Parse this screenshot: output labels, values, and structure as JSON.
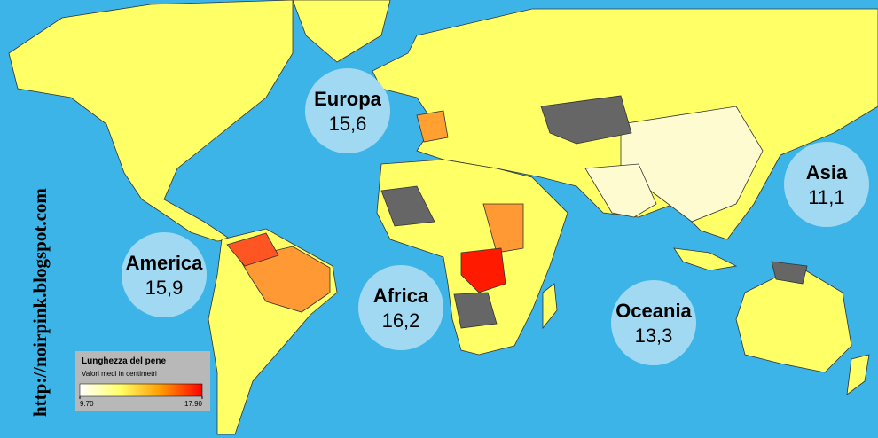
{
  "regions": [
    {
      "name": "Europa",
      "value": {
        "value": 15.6,
        "label": "15,6"
      }
    },
    {
      "name": "Asia",
      "value": {
        "value": 11.1,
        "label": "11,1"
      }
    },
    {
      "name": "America",
      "value": {
        "value": 15.9,
        "label": "15,9"
      }
    },
    {
      "name": "Africa",
      "value": {
        "value": 16.2,
        "label": "16,2"
      }
    },
    {
      "name": "Oceania",
      "value": {
        "value": 13.3,
        "label": "13,3"
      }
    }
  ],
  "legend": {
    "title": "Lunghezza  del pene",
    "subtitle": "Valori medi in centimetri",
    "min": {
      "value": 9.7,
      "label": "9.70"
    },
    "max": {
      "value": 17.9,
      "label": "17.90"
    },
    "colors": [
      "#ffffff",
      "#ffff66",
      "#ff9900",
      "#ff0000"
    ]
  },
  "watermark": "http://noirpink.blogspot.com"
}
